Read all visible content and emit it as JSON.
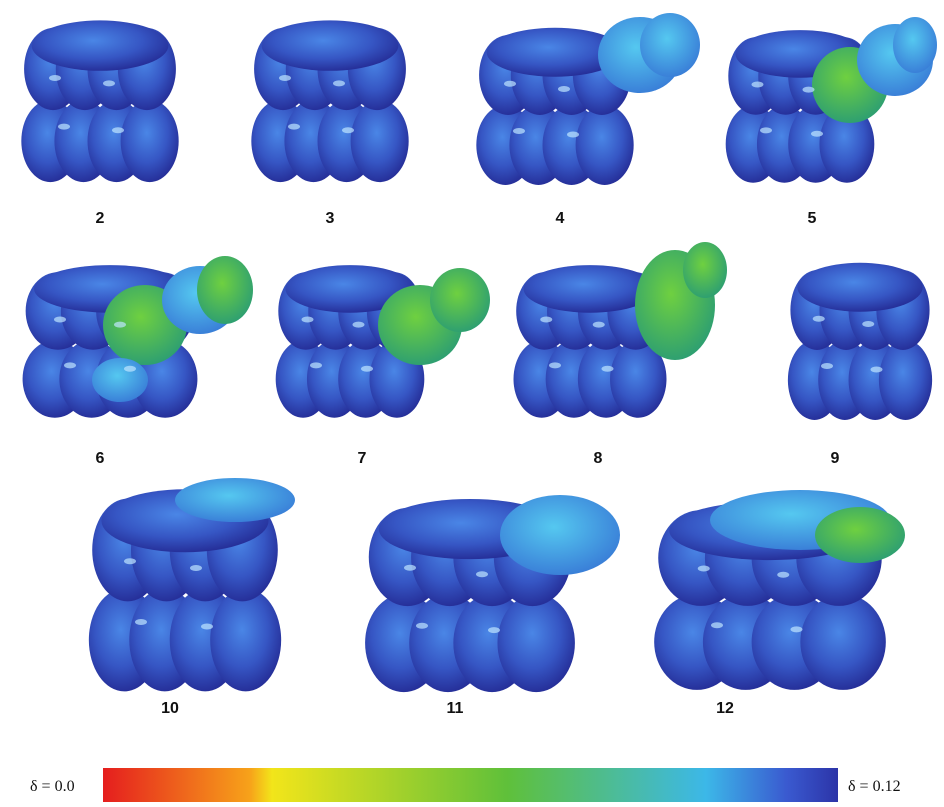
{
  "figure": {
    "panels": [
      {
        "label": "2"
      },
      {
        "label": "3"
      },
      {
        "label": "4"
      },
      {
        "label": "5"
      },
      {
        "label": "6"
      },
      {
        "label": "7"
      },
      {
        "label": "8"
      },
      {
        "label": "9"
      },
      {
        "label": "10"
      },
      {
        "label": "11"
      },
      {
        "label": "12"
      }
    ],
    "colorbar": {
      "min_label": "δ = 0.0",
      "max_label": "δ = 0.12"
    }
  }
}
